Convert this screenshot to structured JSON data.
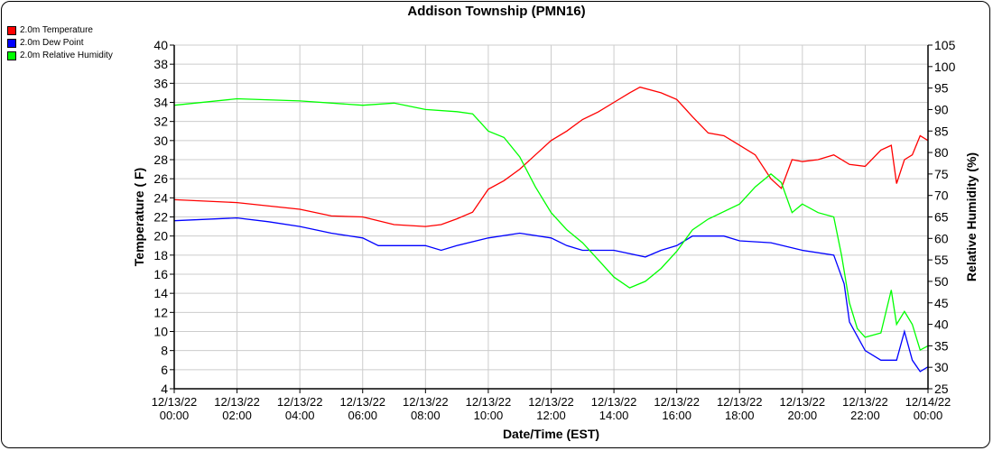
{
  "chart_data": {
    "type": "line",
    "title": "Addison Township (PMN16)",
    "xlabel": "Date/Time (EST)",
    "ylabel": "Temperature ( F)",
    "y2label": "Relative Humidity (%)",
    "xlim_hours": [
      0,
      24
    ],
    "ylim": [
      4,
      40
    ],
    "y2lim": [
      25,
      105
    ],
    "grid": true,
    "legend_position": "top-left",
    "x_ticks": [
      {
        "d": "12/13/22",
        "t": "00:00"
      },
      {
        "d": "12/13/22",
        "t": "02:00"
      },
      {
        "d": "12/13/22",
        "t": "04:00"
      },
      {
        "d": "12/13/22",
        "t": "06:00"
      },
      {
        "d": "12/13/22",
        "t": "08:00"
      },
      {
        "d": "12/13/22",
        "t": "10:00"
      },
      {
        "d": "12/13/22",
        "t": "12:00"
      },
      {
        "d": "12/13/22",
        "t": "14:00"
      },
      {
        "d": "12/13/22",
        "t": "16:00"
      },
      {
        "d": "12/13/22",
        "t": "18:00"
      },
      {
        "d": "12/13/22",
        "t": "20:00"
      },
      {
        "d": "12/13/22",
        "t": "22:00"
      },
      {
        "d": "12/14/22",
        "t": "00:00"
      }
    ],
    "y_ticks": [
      4,
      6,
      8,
      10,
      12,
      14,
      16,
      18,
      20,
      22,
      24,
      26,
      28,
      30,
      32,
      34,
      36,
      38,
      40
    ],
    "y2_ticks": [
      25,
      30,
      35,
      40,
      45,
      50,
      55,
      60,
      65,
      70,
      75,
      80,
      85,
      90,
      95,
      100,
      105
    ],
    "series": [
      {
        "name": "2.0m Temperature",
        "color": "#ff0000",
        "axis": "left",
        "x": [
          0,
          2,
          4,
          5,
          6,
          7,
          8,
          8.5,
          9,
          9.5,
          10,
          10.5,
          11,
          11.5,
          12,
          12.5,
          13,
          13.5,
          14,
          14.5,
          14.83,
          15.5,
          16,
          16.5,
          17,
          17.5,
          18,
          18.5,
          19,
          19.33,
          19.67,
          20,
          20.5,
          21,
          21.5,
          22,
          22.5,
          22.83,
          23,
          23.25,
          23.5,
          23.75,
          24
        ],
        "y": [
          23.8,
          23.5,
          22.8,
          22.1,
          22,
          21.2,
          21,
          21.2,
          21.8,
          22.5,
          24.9,
          25.8,
          27,
          28.5,
          30,
          31,
          32.2,
          33,
          34,
          35,
          35.6,
          35,
          34.3,
          32.5,
          30.8,
          30.5,
          29.5,
          28.5,
          26,
          25,
          28,
          27.8,
          28,
          28.5,
          27.5,
          27.3,
          29,
          29.5,
          25.5,
          28,
          28.5,
          30.5,
          30
        ]
      },
      {
        "name": "2.0m Dew Point",
        "color": "#0000ff",
        "axis": "left",
        "x": [
          0,
          2,
          3,
          4,
          5,
          6,
          6.5,
          8,
          8.5,
          9,
          10,
          11,
          12,
          12.5,
          13,
          14,
          15,
          15.5,
          16,
          16.5,
          17.5,
          18,
          19,
          20,
          21,
          21.33,
          21.5,
          22,
          22.5,
          23,
          23.25,
          23.5,
          23.75,
          24
        ],
        "y": [
          21.6,
          21.9,
          21.5,
          21,
          20.3,
          19.8,
          19,
          19,
          18.5,
          19,
          19.8,
          20.3,
          19.8,
          19,
          18.5,
          18.5,
          17.8,
          18.5,
          19,
          20,
          20,
          19.5,
          19.3,
          18.5,
          18,
          15,
          11,
          8,
          7,
          7,
          10,
          7,
          5.8,
          6.3
        ]
      },
      {
        "name": "2.0m Relative Humidity",
        "color": "#00ff00",
        "axis": "right",
        "x": [
          0,
          2,
          4,
          6,
          7,
          8,
          9,
          9.5,
          10,
          10.5,
          11,
          11.5,
          12,
          12.5,
          13,
          13.5,
          14,
          14.5,
          15,
          15.5,
          16,
          16.5,
          17,
          18,
          18.5,
          19,
          19.33,
          19.67,
          20,
          20.5,
          21,
          21.25,
          21.5,
          21.75,
          22,
          22.5,
          22.83,
          23,
          23.25,
          23.5,
          23.75,
          24
        ],
        "y": [
          91,
          92.5,
          92,
          91,
          91.5,
          90,
          89.5,
          89,
          85,
          83.5,
          79,
          72,
          66,
          62,
          59,
          55,
          51,
          48.5,
          50,
          53,
          57,
          62,
          64.5,
          68,
          72,
          75,
          73,
          66,
          68,
          66,
          65,
          56,
          45,
          39,
          37,
          38,
          48,
          40,
          43,
          40,
          34,
          35
        ]
      }
    ]
  }
}
